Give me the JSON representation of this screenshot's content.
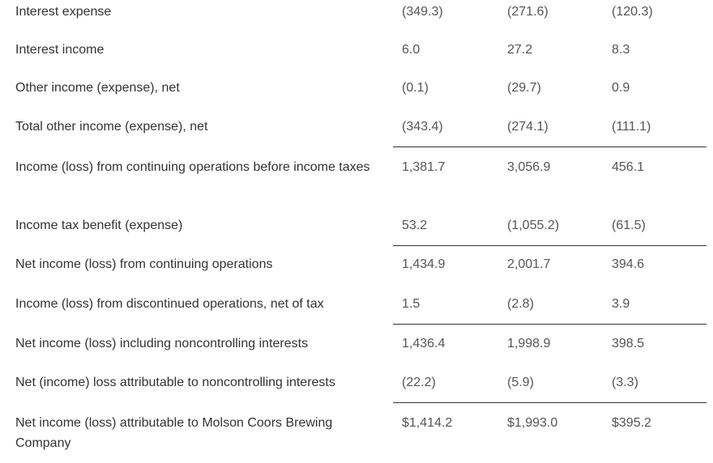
{
  "rows": [
    {
      "label": "Interest expense",
      "v1": "(349.3)",
      "v2": "(271.6)",
      "v3": "(120.3)"
    },
    {
      "label": "Interest income",
      "v1": "6.0",
      "v2": "27.2",
      "v3": "8.3"
    },
    {
      "label": "Other income (expense), net",
      "v1": "(0.1)",
      "v2": "(29.7)",
      "v3": "0.9"
    },
    {
      "label": "Total other income (expense), net",
      "v1": "(343.4)",
      "v2": "(274.1)",
      "v3": "(111.1)"
    },
    {
      "label": "Income (loss) from continuing operations before income taxes",
      "v1": "1,381.7",
      "v2": "3,056.9",
      "v3": "456.1"
    },
    {
      "label": "Income tax benefit (expense)",
      "v1": "53.2",
      "v2": "(1,055.2)",
      "v3": "(61.5)"
    },
    {
      "label": "Net income (loss) from continuing operations",
      "v1": "1,434.9",
      "v2": "2,001.7",
      "v3": "394.6"
    },
    {
      "label": "Income (loss) from discontinued operations, net of tax",
      "v1": "1.5",
      "v2": "(2.8)",
      "v3": "3.9"
    },
    {
      "label": "Net income (loss) including noncontrolling interests",
      "v1": "1,436.4",
      "v2": "1,998.9",
      "v3": "398.5"
    },
    {
      "label": "Net (income) loss attributable to noncontrolling interests",
      "v1": "(22.2)",
      "v2": "(5.9)",
      "v3": "(3.3)"
    },
    {
      "label": "Net income (loss) attributable to Molson Coors Brewing Company",
      "v1": "$1,414.2",
      "v2": "$1,993.0",
      "v3": "$395.2"
    }
  ]
}
